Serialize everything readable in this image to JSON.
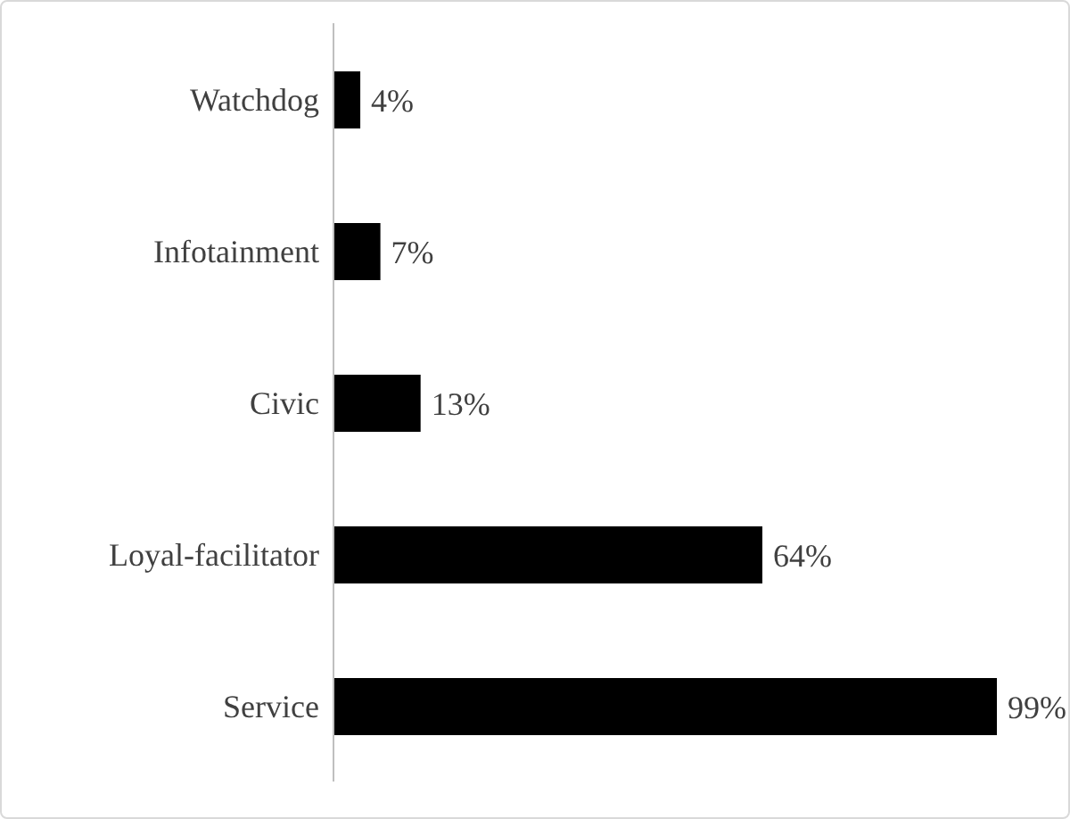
{
  "chart_data": {
    "type": "bar",
    "orientation": "horizontal",
    "categories": [
      "Watchdog",
      "Infotainment",
      "Civic",
      "Loyal-facilitator",
      "Service"
    ],
    "values": [
      4,
      7,
      13,
      64,
      99
    ],
    "value_labels": [
      "4%",
      "7%",
      "13%",
      "64%",
      "99%"
    ],
    "color": "#000000"
  }
}
